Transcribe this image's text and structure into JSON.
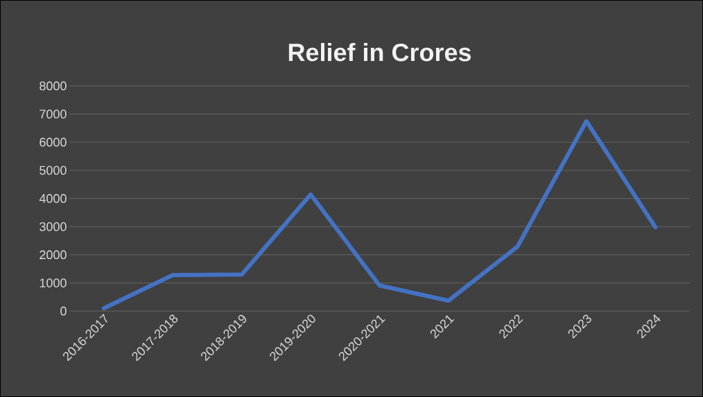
{
  "chart_data": {
    "type": "line",
    "title": "Relief in Crores",
    "categories": [
      "2016-2017",
      "2017-2018",
      "2018-2019",
      "2019-2020",
      "2020-2021",
      "2021",
      "2022",
      "2023",
      "2024"
    ],
    "values": [
      100,
      1280,
      1300,
      4140,
      910,
      370,
      2290,
      6750,
      2980
    ],
    "color": "#4472c4",
    "ylim": [
      0,
      8000
    ],
    "yticks": [
      0,
      1000,
      2000,
      3000,
      4000,
      5000,
      6000,
      7000,
      8000
    ],
    "grid": "y"
  }
}
